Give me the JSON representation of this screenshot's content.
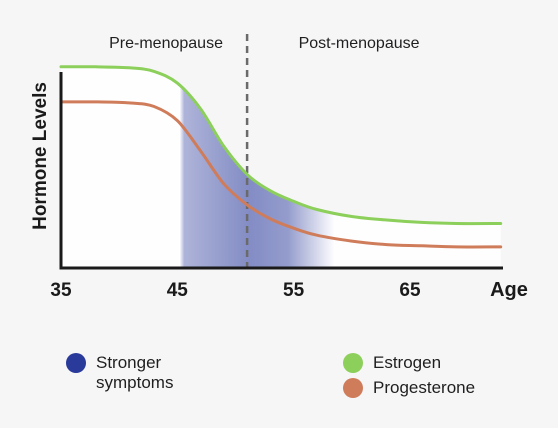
{
  "chart_data": {
    "type": "line",
    "title": "",
    "xlabel": "Age",
    "ylabel": "Hormone Levels",
    "x_ticks": [
      35,
      45,
      55,
      65
    ],
    "xlim": [
      35,
      73
    ],
    "ylim": [
      0,
      100
    ],
    "y_ticks_shown": false,
    "grid": false,
    "phase_divider_x": 51,
    "regions": [
      {
        "name": "Pre-menopause"
      },
      {
        "name": "Post-menopause"
      }
    ],
    "highlight_band": {
      "label": "Stronger\nsymptoms",
      "x_range": [
        45.2,
        58.5
      ],
      "color": "#2a3a9a"
    },
    "series": [
      {
        "name": "Estrogen",
        "color": "#8ccf5a",
        "x": [
          35,
          38,
          41,
          43,
          45,
          47,
          49,
          51,
          53,
          55,
          57,
          60,
          63,
          66,
          69,
          72.8
        ],
        "y": [
          86,
          86,
          85.5,
          84,
          79,
          68,
          52,
          40,
          33,
          28.5,
          25,
          22,
          20.5,
          19.5,
          19,
          19
        ]
      },
      {
        "name": "Progesterone",
        "color": "#cf7c5a",
        "x": [
          35,
          38,
          41,
          43,
          45,
          47,
          49,
          51,
          53,
          55,
          57,
          60,
          63,
          66,
          69,
          72.8
        ],
        "y": [
          71,
          71,
          70.5,
          69,
          63,
          50,
          36,
          27,
          21,
          17,
          14,
          11.5,
          10,
          9.5,
          9,
          9
        ]
      }
    ],
    "legend": [
      {
        "label": "Stronger\nsymptoms",
        "color": "#2a3a9a"
      },
      {
        "label": "Estrogen",
        "color": "#8ccf5a"
      },
      {
        "label": "Progesterone",
        "color": "#cf7c5a"
      }
    ]
  }
}
